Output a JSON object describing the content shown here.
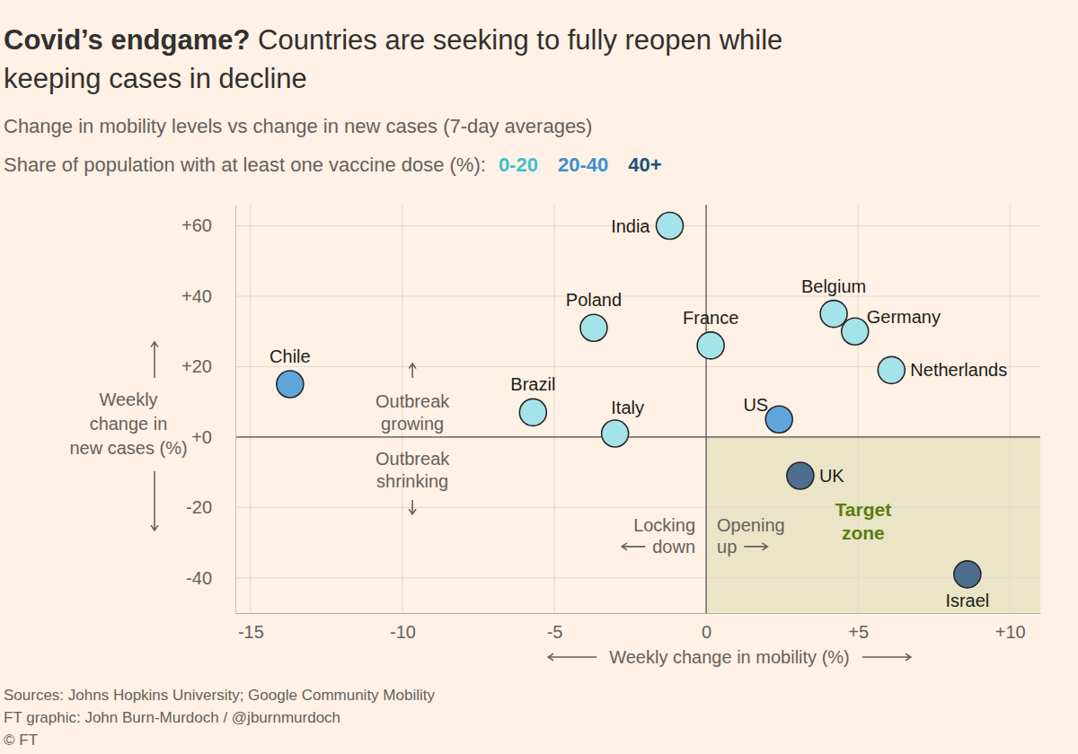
{
  "chart_data": {
    "type": "scatter",
    "title": "Covid’s endgame? Countries are seeking to fully reopen while keeping cases in decline",
    "subtitle": "Change in mobility levels vs change in new cases (7-day averages)",
    "legend_title": "Share of population with at least one vaccine dose (%):",
    "xlabel": "Weekly change in mobility (%)",
    "ylabel": [
      "Weekly",
      "change in",
      "new cases (%)"
    ],
    "xlim": [
      -15.5,
      11
    ],
    "xticks": [
      -15,
      -10,
      -5,
      0,
      {
        "value": 5,
        "label": "+5"
      },
      {
        "value": 10,
        "label": "+10"
      }
    ],
    "ylim": [
      -50,
      66
    ],
    "yticks": [
      -40,
      -20,
      {
        "value": 0,
        "label": "+0"
      },
      {
        "value": 20,
        "label": "+20"
      },
      {
        "value": 40,
        "label": "+40"
      },
      {
        "value": 60,
        "label": "+60"
      }
    ],
    "grid": true,
    "marker": "circle",
    "series": [
      {
        "name": "0-20",
        "color": "#a4e3ea",
        "labels": [
          "India",
          "Poland",
          "France",
          "Belgium",
          "Germany",
          "Netherlands",
          "Brazil",
          "Italy"
        ],
        "x": [
          -1.2,
          -3.7,
          0.15,
          4.2,
          4.9,
          6.1,
          -5.7,
          -3.0
        ],
        "values": [
          60,
          31,
          26,
          35,
          30,
          19,
          7,
          1
        ]
      },
      {
        "name": "20-40",
        "color": "#5ea6dc",
        "labels": [
          "Chile",
          "US"
        ],
        "x": [
          -13.7,
          2.4
        ],
        "values": [
          15,
          5
        ]
      },
      {
        "name": "40+",
        "color": "#4d6e8e",
        "labels": [
          "UK",
          "Israel"
        ],
        "x": [
          3.1,
          8.6
        ],
        "values": [
          -11,
          -39
        ]
      }
    ],
    "annotations": [
      [
        "Outbreak",
        "growing"
      ],
      [
        "Outbreak",
        "shrinking"
      ],
      [
        "Locking",
        "down"
      ],
      [
        "Opening",
        "up"
      ],
      [
        "Target",
        "zone"
      ]
    ],
    "source": "Sources: Johns Hopkins University; Google Community Mobility",
    "credit": "FT graphic: John Burn-Murdoch / @jburnmurdoch",
    "copyright": "© FT"
  }
}
